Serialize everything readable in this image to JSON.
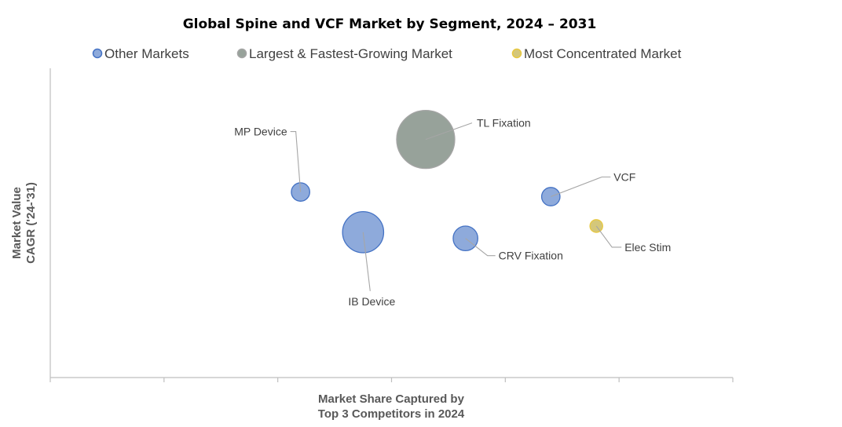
{
  "chart_data": {
    "type": "bubble",
    "title": "Global Spine and VCF Market by Segment, 2024 – 2031",
    "xlabel": [
      "Market Share Captured by",
      "Top 3 Competitors in 2024"
    ],
    "ylabel": [
      "Market Value",
      "CAGR ('24-'31)"
    ],
    "xlim": [
      0,
      6
    ],
    "ylim": [
      0,
      10
    ],
    "legend_position": "top",
    "grid": false,
    "categories": [
      {
        "name": "Other Markets",
        "color": "#8eaadb",
        "border": "#4472c4"
      },
      {
        "name": "Largest & Fastest-Growing Market",
        "color": "#97a29a",
        "border": "#a5a5a5"
      },
      {
        "name": "Most Concentrated Market",
        "color": "#d4c77a",
        "border": "#e8c840"
      }
    ],
    "points": [
      {
        "label": "MP Device",
        "x": 2.2,
        "y": 6.0,
        "size": 1.0,
        "category": "Other Markets"
      },
      {
        "label": "IB Device",
        "x": 2.75,
        "y": 4.7,
        "size": 5.0,
        "category": "Other Markets"
      },
      {
        "label": "TL Fixation",
        "x": 3.3,
        "y": 7.7,
        "size": 10.0,
        "category": "Largest & Fastest-Growing Market"
      },
      {
        "label": "CRV Fixation",
        "x": 3.65,
        "y": 4.5,
        "size": 1.8,
        "category": "Other Markets"
      },
      {
        "label": "VCF",
        "x": 4.4,
        "y": 5.85,
        "size": 1.0,
        "category": "Other Markets"
      },
      {
        "label": "Elec Stim",
        "x": 4.8,
        "y": 4.9,
        "size": 0.48,
        "category": "Most Concentrated Market"
      }
    ]
  }
}
